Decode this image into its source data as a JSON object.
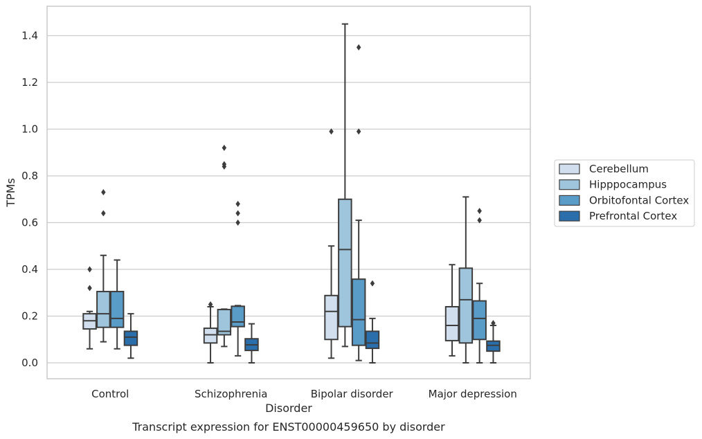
{
  "chart_data": {
    "type": "box",
    "caption": "Transcript expression for ENST00000459650 by disorder",
    "xlabel": "Disorder",
    "ylabel": "TPMs",
    "ylim": [
      -0.07,
      1.53
    ],
    "yticks": [
      0.0,
      0.2,
      0.4,
      0.6,
      0.8,
      1.0,
      1.2,
      1.4
    ],
    "ytick_labels": [
      "0.0",
      "0.2",
      "0.4",
      "0.6",
      "0.8",
      "1.0",
      "1.2",
      "1.4"
    ],
    "grid": "horizontal",
    "legend_position": "right-center",
    "categories": [
      "Control",
      "Schizophrenia",
      "Bipolar disorder",
      "Major depression"
    ],
    "series": [
      {
        "name": "Cerebellum",
        "color": "#d0deed",
        "boxes": [
          {
            "whislo": 0.06,
            "q1": 0.145,
            "med": 0.18,
            "q3": 0.21,
            "whishi": 0.22,
            "fliers": [
              0.32,
              0.4
            ]
          },
          {
            "whislo": 0.0,
            "q1": 0.085,
            "med": 0.12,
            "q3": 0.148,
            "whishi": 0.24,
            "fliers": [
              0.25
            ]
          },
          {
            "whislo": 0.02,
            "q1": 0.1,
            "med": 0.22,
            "q3": 0.288,
            "whishi": 0.5,
            "fliers": [
              0.99
            ]
          },
          {
            "whislo": 0.03,
            "q1": 0.095,
            "med": 0.16,
            "q3": 0.24,
            "whishi": 0.42,
            "fliers": []
          }
        ]
      },
      {
        "name": "Hipppocampus",
        "color": "#9fc5dd",
        "boxes": [
          {
            "whislo": 0.09,
            "q1": 0.152,
            "med": 0.21,
            "q3": 0.305,
            "whishi": 0.46,
            "fliers": [
              0.64,
              0.73
            ]
          },
          {
            "whislo": 0.07,
            "q1": 0.12,
            "med": 0.135,
            "q3": 0.228,
            "whishi": 0.23,
            "fliers": [
              0.84,
              0.85,
              0.92
            ]
          },
          {
            "whislo": 0.07,
            "q1": 0.155,
            "med": 0.485,
            "q3": 0.7,
            "whishi": 1.45,
            "fliers": []
          },
          {
            "whislo": 0.0,
            "q1": 0.085,
            "med": 0.27,
            "q3": 0.405,
            "whishi": 0.71,
            "fliers": []
          }
        ]
      },
      {
        "name": "Orbitofontal Cortex",
        "color": "#5a9cc8",
        "boxes": [
          {
            "whislo": 0.06,
            "q1": 0.152,
            "med": 0.19,
            "q3": 0.305,
            "whishi": 0.44,
            "fliers": []
          },
          {
            "whislo": 0.03,
            "q1": 0.155,
            "med": 0.175,
            "q3": 0.242,
            "whishi": 0.245,
            "fliers": [
              0.6,
              0.64,
              0.68
            ]
          },
          {
            "whislo": 0.01,
            "q1": 0.075,
            "med": 0.185,
            "q3": 0.358,
            "whishi": 0.61,
            "fliers": [
              0.99,
              1.35
            ]
          },
          {
            "whislo": 0.0,
            "q1": 0.1,
            "med": 0.19,
            "q3": 0.265,
            "whishi": 0.34,
            "fliers": [
              0.61,
              0.65
            ]
          }
        ]
      },
      {
        "name": "Prefrontal Cortex",
        "color": "#2a6fac",
        "boxes": [
          {
            "whislo": 0.02,
            "q1": 0.075,
            "med": 0.11,
            "q3": 0.135,
            "whishi": 0.21,
            "fliers": []
          },
          {
            "whislo": 0.0,
            "q1": 0.053,
            "med": 0.077,
            "q3": 0.103,
            "whishi": 0.167,
            "fliers": []
          },
          {
            "whislo": 0.0,
            "q1": 0.062,
            "med": 0.085,
            "q3": 0.135,
            "whishi": 0.19,
            "fliers": [
              0.34
            ]
          },
          {
            "whislo": 0.0,
            "q1": 0.05,
            "med": 0.075,
            "q3": 0.093,
            "whishi": 0.16,
            "fliers": [
              0.17
            ]
          }
        ]
      }
    ],
    "colors": {
      "grid": "#cccccc",
      "frame": "#c8c8c8",
      "line": "#3d3d3d",
      "text": "#262626",
      "legend_border": "#cccccc"
    }
  }
}
